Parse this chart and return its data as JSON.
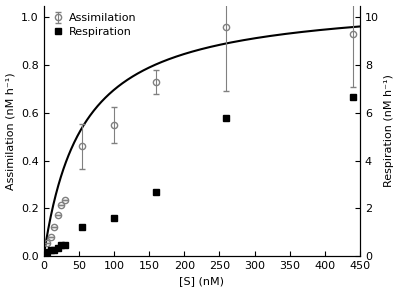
{
  "assimilation_x": [
    5,
    10,
    15,
    20,
    25,
    30,
    55,
    100,
    160,
    260,
    440
  ],
  "assimilation_y": [
    0.055,
    0.08,
    0.12,
    0.17,
    0.215,
    0.235,
    0.46,
    0.55,
    0.73,
    0.96,
    0.93
  ],
  "assimilation_yerr": [
    0.0,
    0.0,
    0.0,
    0.0,
    0.0,
    0.0,
    0.095,
    0.075,
    0.05,
    0.27,
    0.22
  ],
  "respiration_x": [
    5,
    10,
    15,
    20,
    25,
    30,
    55,
    100,
    160,
    260,
    440
  ],
  "respiration_y": [
    0.15,
    0.25,
    0.25,
    0.35,
    0.45,
    0.48,
    1.2,
    1.6,
    2.7,
    5.8,
    6.65
  ],
  "curve_vmax": 1.08,
  "curve_km": 55,
  "xlabel": "[S] (nM)",
  "ylabel_left": "Assimilation (nM h⁻¹)",
  "ylabel_right": "Respiration (nM h⁻¹)",
  "xlim": [
    0,
    450
  ],
  "ylim_left": [
    0,
    1.05
  ],
  "ylim_right": [
    0,
    10.5
  ],
  "xticks": [
    0,
    50,
    100,
    150,
    200,
    250,
    300,
    350,
    400,
    450
  ],
  "yticks_left": [
    0,
    0.2,
    0.4,
    0.6,
    0.8,
    1.0
  ],
  "yticks_right": [
    0,
    2,
    4,
    6,
    8,
    10
  ],
  "assimilation_color": "#808080",
  "respiration_color": "#000000",
  "curve_color": "#000000",
  "background_color": "#ffffff",
  "figure_color": "#ffffff",
  "marker_size": 4.5,
  "curve_lw": 1.5,
  "font_size_label": 8,
  "font_size_tick": 8,
  "font_size_legend": 8
}
